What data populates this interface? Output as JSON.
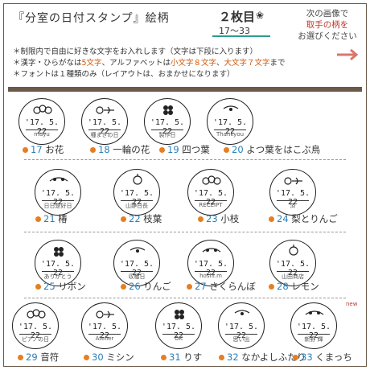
{
  "header": {
    "title": "『分室の日付スタンプ』絵柄",
    "sheet": "２枚目",
    "sheet_range": "17〜33",
    "next_line1": "次の画像で",
    "next_line2": "取手の柄を",
    "next_line3": "お選びください"
  },
  "notes": {
    "line1": "＊制限内で自由に好きな文字をお入れします（文字は下段に入ります）",
    "line2_a": "＊漢字・ひらがなは",
    "line2_b": "5文字",
    "line2_c": "、アルファベットは",
    "line2_d": "小文字８文字",
    "line2_e": "、",
    "line2_f": "大文字７文字",
    "line2_g": "まで",
    "line3": "＊フォントは１種類のみ（レイアウトは、おまかせになります）"
  },
  "date": "'17. 5. 22",
  "new_tag": "new",
  "stamps": [
    {
      "num": "17",
      "name": "お花",
      "sub": "mayu"
    },
    {
      "num": "18",
      "name": "一輪の花",
      "sub": "種まきの日"
    },
    {
      "num": "19",
      "name": "四つ葉",
      "sub": "製作日"
    },
    {
      "num": "20",
      "name": "よつ葉をはこぶ鳥",
      "sub": "Thankyou"
    },
    {
      "num": "21",
      "name": "椿",
      "sub": "日日是好日"
    },
    {
      "num": "22",
      "name": "枝葉",
      "sub": "山静日長"
    },
    {
      "num": "23",
      "name": "小枝",
      "sub": "RECEIPT"
    },
    {
      "num": "24",
      "name": "梨とりんご",
      "sub": "済"
    },
    {
      "num": "25",
      "name": "リボン",
      "sub": "ありがとう"
    },
    {
      "num": "26",
      "name": "りんご",
      "sub": "収穫日"
    },
    {
      "num": "27",
      "name": "さくらんぼ",
      "sub": "hoshi.m"
    },
    {
      "num": "28",
      "name": "レモン",
      "sub": "山田商店"
    },
    {
      "num": "29",
      "name": "音符",
      "sub": "ピアノの日"
    },
    {
      "num": "30",
      "name": "ミシン",
      "sub": "Atelier"
    },
    {
      "num": "31",
      "name": "りす",
      "sub": "OK"
    },
    {
      "num": "32",
      "name": "なかよしふたり",
      "sub": "思い出"
    },
    {
      "num": "33",
      "name": "くまっち",
      "sub": "新野 輝"
    }
  ]
}
